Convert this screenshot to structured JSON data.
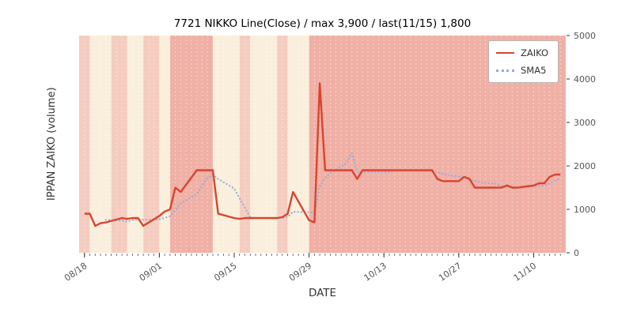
{
  "chart_data": {
    "type": "line",
    "title": "7721 NIKKO Line(Close) / max 3,900 / last(11/15) 1,800",
    "xlabel": "DATE",
    "ylabel": "IPPAN ZAIKO (volume)",
    "ylim": [
      0,
      5000
    ],
    "yticks": [
      0,
      1000,
      2000,
      3000,
      4000,
      5000
    ],
    "xticks": [
      "08/18",
      "09/01",
      "09/15",
      "09/29",
      "10/13",
      "10/27",
      "11/10"
    ],
    "legend_position": "upper right",
    "x_dates": [
      "08/18",
      "08/19",
      "08/20",
      "08/21",
      "08/22",
      "08/25",
      "08/26",
      "08/27",
      "08/28",
      "08/29",
      "09/01",
      "09/02",
      "09/03",
      "09/04",
      "09/05",
      "09/08",
      "09/09",
      "09/10",
      "09/11",
      "09/12",
      "09/15",
      "09/16",
      "09/17",
      "09/18",
      "09/19",
      "09/22",
      "09/23",
      "09/24",
      "09/25",
      "09/26",
      "09/29",
      "09/30",
      "10/01",
      "10/02",
      "10/03",
      "10/06",
      "10/07",
      "10/08",
      "10/09",
      "10/10",
      "10/13",
      "10/14",
      "10/15",
      "10/16",
      "10/17",
      "10/20",
      "10/21",
      "10/22",
      "10/23",
      "10/24",
      "10/27",
      "10/28",
      "10/29",
      "10/30",
      "10/31",
      "11/03",
      "11/04",
      "11/05",
      "11/06",
      "11/07",
      "11/10",
      "11/11",
      "11/12",
      "11/13",
      "11/14",
      "11/15"
    ],
    "series": [
      {
        "name": "ZAIKO",
        "style": "solid",
        "values": [
          900,
          900,
          620,
          680,
          700,
          800,
          780,
          800,
          800,
          620,
          850,
          950,
          1000,
          1500,
          1400,
          1900,
          1900,
          1900,
          1900,
          900,
          800,
          780,
          800,
          800,
          800,
          800,
          800,
          820,
          900,
          1400,
          750,
          700,
          3900,
          1900,
          1900,
          1900,
          1900,
          1700,
          1900,
          1900,
          1900,
          1900,
          1900,
          1900,
          1900,
          1900,
          1900,
          1900,
          1700,
          1650,
          1650,
          1750,
          1700,
          1500,
          1500,
          1500,
          1500,
          1550,
          1500,
          1500,
          1550,
          1600,
          1600,
          1750,
          1800,
          1800
        ]
      },
      {
        "name": "SMA5",
        "style": "dotted",
        "derived_from": "ZAIKO",
        "window": 5
      }
    ],
    "bands": [
      {
        "from": "08/16",
        "to": "08/19",
        "strength": "light"
      },
      {
        "from": "08/23",
        "to": "08/26",
        "strength": "light"
      },
      {
        "from": "08/29",
        "to": "09/01",
        "strength": "light"
      },
      {
        "from": "09/03",
        "to": "09/11",
        "strength": "strong"
      },
      {
        "from": "09/16",
        "to": "09/18",
        "strength": "light"
      },
      {
        "from": "09/23",
        "to": "09/25",
        "strength": "light"
      },
      {
        "from": "09/29",
        "to": "11/16",
        "strength": "strong"
      }
    ],
    "colors": {
      "zaiko": "#d9442f",
      "sma5": "#95abd8",
      "plot_bg": "#f9efdc",
      "band_light": "#f5cdc0",
      "band_strong": "#f0b0a5",
      "tick_label": "#555555"
    },
    "annotations": {
      "max_value": 3900,
      "last_date": "11/15",
      "last_value": 1800
    }
  }
}
